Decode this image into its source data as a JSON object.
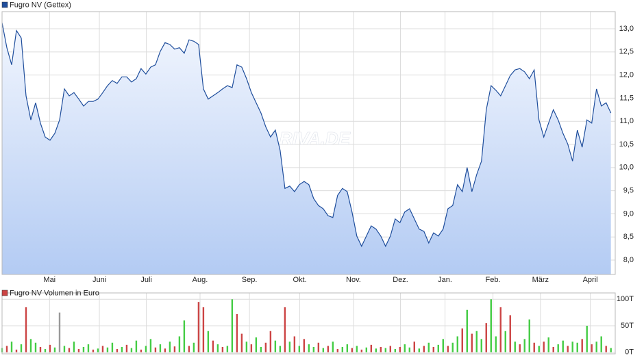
{
  "chart_data": [
    {
      "type": "line",
      "watermark": "ARIVA.DE",
      "grid": true,
      "xlim": [
        0,
        127.9
      ],
      "xticks": [
        {
          "value": 9.9,
          "label": "Mai"
        },
        {
          "value": 20.3,
          "label": "Juni"
        },
        {
          "value": 30.1,
          "label": "Juli"
        },
        {
          "value": 41.3,
          "label": "Aug."
        },
        {
          "value": 51.6,
          "label": "Sep."
        },
        {
          "value": 62.1,
          "label": "Okt."
        },
        {
          "value": 73.3,
          "label": "Nov."
        },
        {
          "value": 83.1,
          "label": "Dez."
        },
        {
          "value": 92.4,
          "label": "Jan."
        },
        {
          "value": 102.4,
          "label": "Feb."
        },
        {
          "value": 112.3,
          "label": "März"
        },
        {
          "value": 122.7,
          "label": "April"
        }
      ],
      "ylim": [
        7.69,
        13.37
      ],
      "yticks": [
        {
          "value": 8,
          "label": "8,0"
        },
        {
          "value": 8.5,
          "label": "8,5"
        },
        {
          "value": 9,
          "label": "9,0"
        },
        {
          "value": 9.5,
          "label": "9,5"
        },
        {
          "value": 10,
          "label": "10,0"
        },
        {
          "value": 10.5,
          "label": "10,5"
        },
        {
          "value": 11,
          "label": "11,0"
        },
        {
          "value": 11.5,
          "label": "11,5"
        },
        {
          "value": 12,
          "label": "12,0"
        },
        {
          "value": 12.5,
          "label": "12,5"
        },
        {
          "value": 13,
          "label": "13,0"
        }
      ],
      "series": [
        {
          "name": "Fugro NV (Gettex)",
          "color": "#1f4e9c",
          "values": [
            13.13,
            12.59,
            12.22,
            12.96,
            12.8,
            11.55,
            11.03,
            11.4,
            10.96,
            10.66,
            10.59,
            10.74,
            11.03,
            11.7,
            11.55,
            11.62,
            11.48,
            11.33,
            11.43,
            11.43,
            11.48,
            11.62,
            11.77,
            11.88,
            11.82,
            11.96,
            11.96,
            11.85,
            11.92,
            12.14,
            12.02,
            12.17,
            12.22,
            12.51,
            12.7,
            12.66,
            12.56,
            12.59,
            12.47,
            12.76,
            12.73,
            12.66,
            11.7,
            11.48,
            11.55,
            11.62,
            11.7,
            11.77,
            11.73,
            12.22,
            12.17,
            11.92,
            11.62,
            11.4,
            11.18,
            10.88,
            10.66,
            10.81,
            10.37,
            9.55,
            9.6,
            9.48,
            9.63,
            9.7,
            9.63,
            9.33,
            9.18,
            9.11,
            8.96,
            8.92,
            9.4,
            9.55,
            9.48,
            9.04,
            8.52,
            8.3,
            8.52,
            8.74,
            8.67,
            8.52,
            8.3,
            8.52,
            8.89,
            8.81,
            9.04,
            9.11,
            8.89,
            8.67,
            8.62,
            8.37,
            8.59,
            8.52,
            8.67,
            9.11,
            9.18,
            9.63,
            9.48,
            10.0,
            9.48,
            9.85,
            10.14,
            11.25,
            11.77,
            11.67,
            11.55,
            11.77,
            11.99,
            12.11,
            12.14,
            12.07,
            11.92,
            12.11,
            11.03,
            10.66,
            10.96,
            11.25,
            11.03,
            10.74,
            10.51,
            10.14,
            10.81,
            10.44,
            11.03,
            10.96,
            11.7,
            11.33,
            11.4,
            11.18
          ]
        }
      ]
    },
    {
      "type": "bar",
      "grid": true,
      "xlim": [
        0,
        127.9
      ],
      "ylim": [
        -3,
        112
      ],
      "yticks": [
        {
          "value": 0,
          "label": "0T"
        },
        {
          "value": 50,
          "label": "50T"
        },
        {
          "value": 100,
          "label": "100T"
        }
      ],
      "series": [
        {
          "name": "Fugro NV Volumen in Euro",
          "color": "#cc4444",
          "values": [
            8,
            12,
            20,
            5,
            15,
            85,
            25,
            18,
            10,
            6,
            14,
            9,
            75,
            12,
            8,
            20,
            6,
            10,
            15,
            5,
            7,
            12,
            9,
            18,
            6,
            10,
            14,
            8,
            22,
            5,
            12,
            25,
            9,
            15,
            7,
            20,
            11,
            30,
            60,
            12,
            18,
            95,
            85,
            40,
            22,
            15,
            10,
            12,
            100,
            72,
            35,
            20,
            15,
            28,
            10,
            18,
            40,
            22,
            12,
            85,
            20,
            30,
            12,
            25,
            15,
            10,
            18,
            8,
            12,
            20,
            6,
            10,
            15,
            8,
            12,
            5,
            9,
            14,
            7,
            10,
            8,
            12,
            6,
            10,
            15,
            9,
            20,
            7,
            12,
            18,
            10,
            14,
            25,
            12,
            18,
            30,
            45,
            80,
            35,
            40,
            25,
            55,
            100,
            30,
            85,
            40,
            70,
            20,
            15,
            25,
            62,
            18,
            12,
            20,
            28,
            10,
            15,
            22,
            12,
            20,
            18,
            25,
            50,
            15,
            20,
            30,
            12,
            8
          ],
          "colors": [
            "#44cc44",
            "#cc4444",
            "#44cc44",
            "#cc4444",
            "#44cc44",
            "#cc4444",
            "#44cc44",
            "#44cc44",
            "#cc4444",
            "#44cc44",
            "#cc4444",
            "#44cc44",
            "#999999",
            "#44cc44",
            "#cc4444",
            "#44cc44",
            "#cc4444",
            "#44cc44",
            "#44cc44",
            "#cc4444",
            "#44cc44",
            "#cc4444",
            "#44cc44",
            "#44cc44",
            "#cc4444",
            "#44cc44",
            "#cc4444",
            "#44cc44",
            "#44cc44",
            "#cc4444",
            "#44cc44",
            "#44cc44",
            "#cc4444",
            "#44cc44",
            "#cc4444",
            "#44cc44",
            "#cc4444",
            "#44cc44",
            "#44cc44",
            "#cc4444",
            "#44cc44",
            "#cc4444",
            "#cc4444",
            "#44cc44",
            "#cc4444",
            "#44cc44",
            "#cc4444",
            "#44cc44",
            "#44cc44",
            "#cc4444",
            "#cc4444",
            "#44cc44",
            "#cc4444",
            "#44cc44",
            "#44cc44",
            "#cc4444",
            "#cc4444",
            "#44cc44",
            "#44cc44",
            "#cc4444",
            "#44cc44",
            "#cc4444",
            "#44cc44",
            "#cc4444",
            "#44cc44",
            "#44cc44",
            "#cc4444",
            "#44cc44",
            "#cc4444",
            "#44cc44",
            "#cc4444",
            "#44cc44",
            "#44cc44",
            "#cc4444",
            "#44cc44",
            "#cc4444",
            "#44cc44",
            "#cc4444",
            "#44cc44",
            "#cc4444",
            "#44cc44",
            "#cc4444",
            "#44cc44",
            "#cc4444",
            "#44cc44",
            "#44cc44",
            "#cc4444",
            "#44cc44",
            "#cc4444",
            "#44cc44",
            "#cc4444",
            "#44cc44",
            "#44cc44",
            "#cc4444",
            "#44cc44",
            "#44cc44",
            "#cc4444",
            "#44cc44",
            "#cc4444",
            "#44cc44",
            "#44cc44",
            "#cc4444",
            "#44cc44",
            "#44cc44",
            "#cc4444",
            "#44cc44",
            "#cc4444",
            "#44cc44",
            "#cc4444",
            "#44cc44",
            "#44cc44",
            "#cc4444",
            "#44cc44",
            "#cc4444",
            "#44cc44",
            "#cc4444",
            "#44cc44",
            "#44cc44",
            "#cc4444",
            "#44cc44",
            "#44cc44",
            "#cc4444",
            "#44cc44",
            "#cc4444",
            "#44cc44",
            "#44cc44",
            "#cc4444",
            "#44cc44"
          ]
        }
      ]
    }
  ]
}
